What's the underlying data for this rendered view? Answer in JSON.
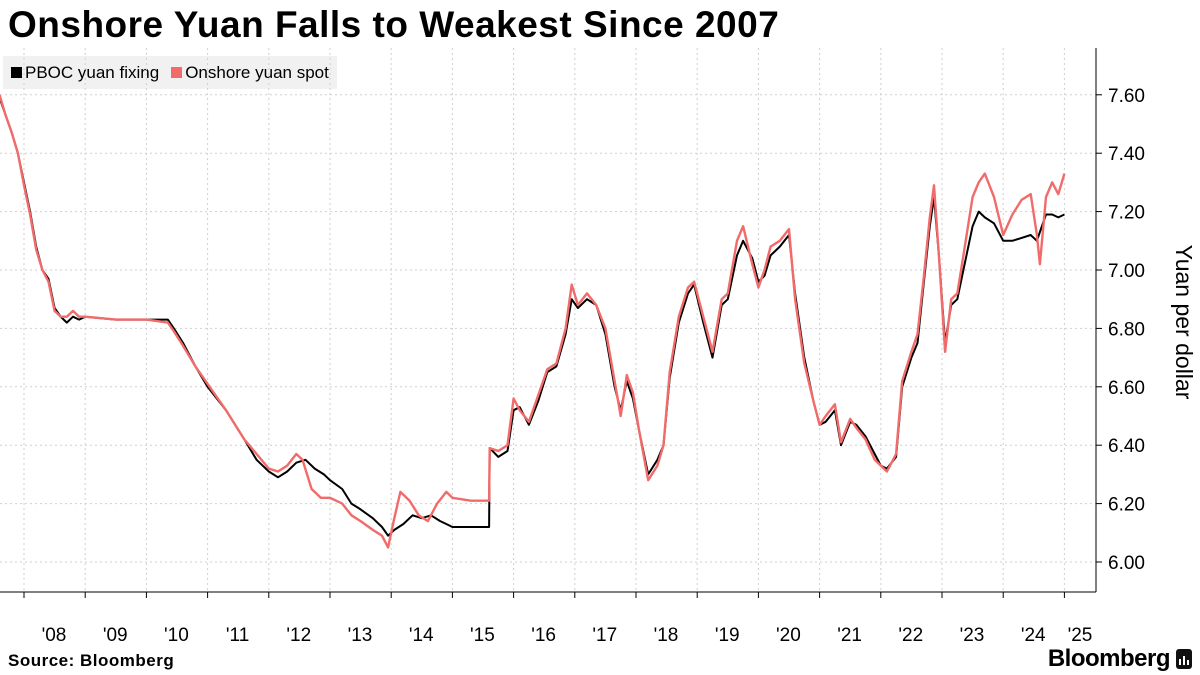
{
  "chart_data": {
    "type": "line",
    "title": "Onshore Yuan Falls to Weakest Since 2007",
    "ylabel": "Yuan per dollar",
    "xlabel": "",
    "ylim": [
      5.9,
      7.78
    ],
    "xlim": [
      2007.6,
      2025.0
    ],
    "y_ticks": [
      "6.00",
      "6.20",
      "6.40",
      "6.60",
      "6.80",
      "7.00",
      "7.20",
      "7.40",
      "7.60"
    ],
    "x_ticks": [
      "'08",
      "'09",
      "'10",
      "'11",
      "'12",
      "'13",
      "'14",
      "'15",
      "'16",
      "'17",
      "'18",
      "'19",
      "'20",
      "'21",
      "'22",
      "'23",
      "'24",
      "'25"
    ],
    "legend_position": "top-left",
    "grid": true,
    "series": [
      {
        "name": "PBOC yuan fixing",
        "color": "#000000",
        "points": [
          [
            2007.6,
            7.59
          ],
          [
            2007.7,
            7.53
          ],
          [
            2007.8,
            7.47
          ],
          [
            2007.9,
            7.4
          ],
          [
            2008.0,
            7.3
          ],
          [
            2008.1,
            7.2
          ],
          [
            2008.2,
            7.08
          ],
          [
            2008.3,
            7.0
          ],
          [
            2008.4,
            6.97
          ],
          [
            2008.5,
            6.87
          ],
          [
            2008.6,
            6.84
          ],
          [
            2008.7,
            6.82
          ],
          [
            2008.8,
            6.84
          ],
          [
            2008.9,
            6.83
          ],
          [
            2009.0,
            6.84
          ],
          [
            2009.5,
            6.83
          ],
          [
            2010.0,
            6.83
          ],
          [
            2010.35,
            6.83
          ],
          [
            2010.45,
            6.8
          ],
          [
            2010.6,
            6.75
          ],
          [
            2010.8,
            6.67
          ],
          [
            2011.0,
            6.6
          ],
          [
            2011.3,
            6.52
          ],
          [
            2011.6,
            6.42
          ],
          [
            2011.8,
            6.35
          ],
          [
            2012.0,
            6.31
          ],
          [
            2012.15,
            6.29
          ],
          [
            2012.3,
            6.31
          ],
          [
            2012.45,
            6.34
          ],
          [
            2012.6,
            6.35
          ],
          [
            2012.75,
            6.32
          ],
          [
            2012.9,
            6.3
          ],
          [
            2013.0,
            6.28
          ],
          [
            2013.2,
            6.25
          ],
          [
            2013.35,
            6.2
          ],
          [
            2013.5,
            6.18
          ],
          [
            2013.7,
            6.15
          ],
          [
            2013.85,
            6.12
          ],
          [
            2013.95,
            6.09
          ],
          [
            2014.05,
            6.11
          ],
          [
            2014.2,
            6.13
          ],
          [
            2014.35,
            6.16
          ],
          [
            2014.5,
            6.15
          ],
          [
            2014.65,
            6.16
          ],
          [
            2014.8,
            6.14
          ],
          [
            2014.9,
            6.13
          ],
          [
            2015.0,
            6.12
          ],
          [
            2015.3,
            6.12
          ],
          [
            2015.6,
            6.12
          ],
          [
            2015.61,
            6.39
          ],
          [
            2015.75,
            6.36
          ],
          [
            2015.9,
            6.38
          ],
          [
            2016.0,
            6.52
          ],
          [
            2016.1,
            6.53
          ],
          [
            2016.25,
            6.47
          ],
          [
            2016.4,
            6.55
          ],
          [
            2016.55,
            6.65
          ],
          [
            2016.7,
            6.67
          ],
          [
            2016.85,
            6.78
          ],
          [
            2016.95,
            6.9
          ],
          [
            2017.05,
            6.87
          ],
          [
            2017.2,
            6.9
          ],
          [
            2017.35,
            6.88
          ],
          [
            2017.5,
            6.78
          ],
          [
            2017.65,
            6.6
          ],
          [
            2017.75,
            6.52
          ],
          [
            2017.85,
            6.62
          ],
          [
            2017.95,
            6.56
          ],
          [
            2018.05,
            6.45
          ],
          [
            2018.2,
            6.3
          ],
          [
            2018.35,
            6.35
          ],
          [
            2018.45,
            6.4
          ],
          [
            2018.55,
            6.63
          ],
          [
            2018.7,
            6.82
          ],
          [
            2018.85,
            6.92
          ],
          [
            2018.95,
            6.95
          ],
          [
            2019.1,
            6.82
          ],
          [
            2019.25,
            6.7
          ],
          [
            2019.4,
            6.88
          ],
          [
            2019.5,
            6.9
          ],
          [
            2019.65,
            7.05
          ],
          [
            2019.75,
            7.1
          ],
          [
            2019.9,
            7.04
          ],
          [
            2020.0,
            6.96
          ],
          [
            2020.1,
            6.98
          ],
          [
            2020.2,
            7.05
          ],
          [
            2020.35,
            7.08
          ],
          [
            2020.5,
            7.12
          ],
          [
            2020.6,
            6.92
          ],
          [
            2020.75,
            6.7
          ],
          [
            2020.9,
            6.55
          ],
          [
            2021.0,
            6.47
          ],
          [
            2021.1,
            6.48
          ],
          [
            2021.25,
            6.52
          ],
          [
            2021.35,
            6.4
          ],
          [
            2021.5,
            6.48
          ],
          [
            2021.6,
            6.47
          ],
          [
            2021.75,
            6.43
          ],
          [
            2021.9,
            6.37
          ],
          [
            2022.0,
            6.33
          ],
          [
            2022.1,
            6.32
          ],
          [
            2022.25,
            6.36
          ],
          [
            2022.35,
            6.6
          ],
          [
            2022.5,
            6.7
          ],
          [
            2022.6,
            6.75
          ],
          [
            2022.7,
            6.95
          ],
          [
            2022.8,
            7.15
          ],
          [
            2022.87,
            7.25
          ],
          [
            2022.95,
            7.05
          ],
          [
            2023.05,
            6.75
          ],
          [
            2023.15,
            6.88
          ],
          [
            2023.25,
            6.9
          ],
          [
            2023.35,
            7.0
          ],
          [
            2023.5,
            7.15
          ],
          [
            2023.6,
            7.2
          ],
          [
            2023.7,
            7.18
          ],
          [
            2023.85,
            7.16
          ],
          [
            2024.0,
            7.1
          ],
          [
            2024.15,
            7.1
          ],
          [
            2024.3,
            7.11
          ],
          [
            2024.45,
            7.12
          ],
          [
            2024.55,
            7.1
          ],
          [
            2024.6,
            7.13
          ],
          [
            2024.7,
            7.19
          ],
          [
            2024.8,
            7.19
          ],
          [
            2024.9,
            7.18
          ],
          [
            2025.0,
            7.19
          ]
        ]
      },
      {
        "name": "Onshore yuan spot",
        "color": "#f26b6b",
        "points": [
          [
            2007.6,
            7.6
          ],
          [
            2007.7,
            7.53
          ],
          [
            2007.8,
            7.47
          ],
          [
            2007.9,
            7.4
          ],
          [
            2008.0,
            7.29
          ],
          [
            2008.1,
            7.19
          ],
          [
            2008.2,
            7.07
          ],
          [
            2008.3,
            7.0
          ],
          [
            2008.4,
            6.96
          ],
          [
            2008.5,
            6.86
          ],
          [
            2008.6,
            6.84
          ],
          [
            2008.7,
            6.84
          ],
          [
            2008.8,
            6.86
          ],
          [
            2008.9,
            6.84
          ],
          [
            2009.0,
            6.84
          ],
          [
            2009.5,
            6.83
          ],
          [
            2010.0,
            6.83
          ],
          [
            2010.35,
            6.82
          ],
          [
            2010.45,
            6.79
          ],
          [
            2010.6,
            6.74
          ],
          [
            2010.8,
            6.67
          ],
          [
            2011.0,
            6.61
          ],
          [
            2011.3,
            6.52
          ],
          [
            2011.6,
            6.42
          ],
          [
            2011.8,
            6.37
          ],
          [
            2012.0,
            6.32
          ],
          [
            2012.15,
            6.31
          ],
          [
            2012.3,
            6.33
          ],
          [
            2012.45,
            6.37
          ],
          [
            2012.55,
            6.35
          ],
          [
            2012.7,
            6.25
          ],
          [
            2012.85,
            6.22
          ],
          [
            2013.0,
            6.22
          ],
          [
            2013.2,
            6.2
          ],
          [
            2013.35,
            6.16
          ],
          [
            2013.5,
            6.14
          ],
          [
            2013.7,
            6.11
          ],
          [
            2013.85,
            6.09
          ],
          [
            2013.95,
            6.05
          ],
          [
            2014.05,
            6.15
          ],
          [
            2014.15,
            6.24
          ],
          [
            2014.3,
            6.21
          ],
          [
            2014.45,
            6.16
          ],
          [
            2014.6,
            6.14
          ],
          [
            2014.75,
            6.2
          ],
          [
            2014.9,
            6.24
          ],
          [
            2015.0,
            6.22
          ],
          [
            2015.3,
            6.21
          ],
          [
            2015.6,
            6.21
          ],
          [
            2015.61,
            6.39
          ],
          [
            2015.75,
            6.38
          ],
          [
            2015.9,
            6.4
          ],
          [
            2016.0,
            6.56
          ],
          [
            2016.1,
            6.52
          ],
          [
            2016.25,
            6.48
          ],
          [
            2016.4,
            6.57
          ],
          [
            2016.55,
            6.66
          ],
          [
            2016.7,
            6.68
          ],
          [
            2016.85,
            6.8
          ],
          [
            2016.95,
            6.95
          ],
          [
            2017.05,
            6.88
          ],
          [
            2017.2,
            6.92
          ],
          [
            2017.35,
            6.88
          ],
          [
            2017.5,
            6.8
          ],
          [
            2017.65,
            6.62
          ],
          [
            2017.75,
            6.5
          ],
          [
            2017.85,
            6.64
          ],
          [
            2017.95,
            6.58
          ],
          [
            2018.05,
            6.45
          ],
          [
            2018.2,
            6.28
          ],
          [
            2018.35,
            6.33
          ],
          [
            2018.45,
            6.4
          ],
          [
            2018.55,
            6.65
          ],
          [
            2018.7,
            6.84
          ],
          [
            2018.85,
            6.94
          ],
          [
            2018.95,
            6.96
          ],
          [
            2019.1,
            6.84
          ],
          [
            2019.25,
            6.72
          ],
          [
            2019.4,
            6.9
          ],
          [
            2019.5,
            6.92
          ],
          [
            2019.65,
            7.1
          ],
          [
            2019.75,
            7.15
          ],
          [
            2019.9,
            7.02
          ],
          [
            2020.0,
            6.94
          ],
          [
            2020.1,
            7.0
          ],
          [
            2020.2,
            7.08
          ],
          [
            2020.35,
            7.1
          ],
          [
            2020.5,
            7.14
          ],
          [
            2020.6,
            6.9
          ],
          [
            2020.75,
            6.68
          ],
          [
            2020.9,
            6.55
          ],
          [
            2021.0,
            6.47
          ],
          [
            2021.1,
            6.5
          ],
          [
            2021.25,
            6.54
          ],
          [
            2021.35,
            6.41
          ],
          [
            2021.5,
            6.49
          ],
          [
            2021.6,
            6.46
          ],
          [
            2021.75,
            6.42
          ],
          [
            2021.9,
            6.35
          ],
          [
            2022.0,
            6.33
          ],
          [
            2022.1,
            6.31
          ],
          [
            2022.25,
            6.37
          ],
          [
            2022.35,
            6.62
          ],
          [
            2022.5,
            6.72
          ],
          [
            2022.6,
            6.78
          ],
          [
            2022.7,
            6.97
          ],
          [
            2022.8,
            7.18
          ],
          [
            2022.87,
            7.29
          ],
          [
            2022.95,
            7.05
          ],
          [
            2023.05,
            6.72
          ],
          [
            2023.15,
            6.9
          ],
          [
            2023.25,
            6.92
          ],
          [
            2023.35,
            7.05
          ],
          [
            2023.5,
            7.25
          ],
          [
            2023.6,
            7.3
          ],
          [
            2023.7,
            7.33
          ],
          [
            2023.85,
            7.25
          ],
          [
            2024.0,
            7.12
          ],
          [
            2024.15,
            7.19
          ],
          [
            2024.3,
            7.24
          ],
          [
            2024.45,
            7.26
          ],
          [
            2024.55,
            7.12
          ],
          [
            2024.6,
            7.02
          ],
          [
            2024.7,
            7.25
          ],
          [
            2024.8,
            7.3
          ],
          [
            2024.9,
            7.26
          ],
          [
            2025.0,
            7.33
          ]
        ]
      }
    ]
  },
  "source": "Source: Bloomberg",
  "brand": "Bloomberg"
}
